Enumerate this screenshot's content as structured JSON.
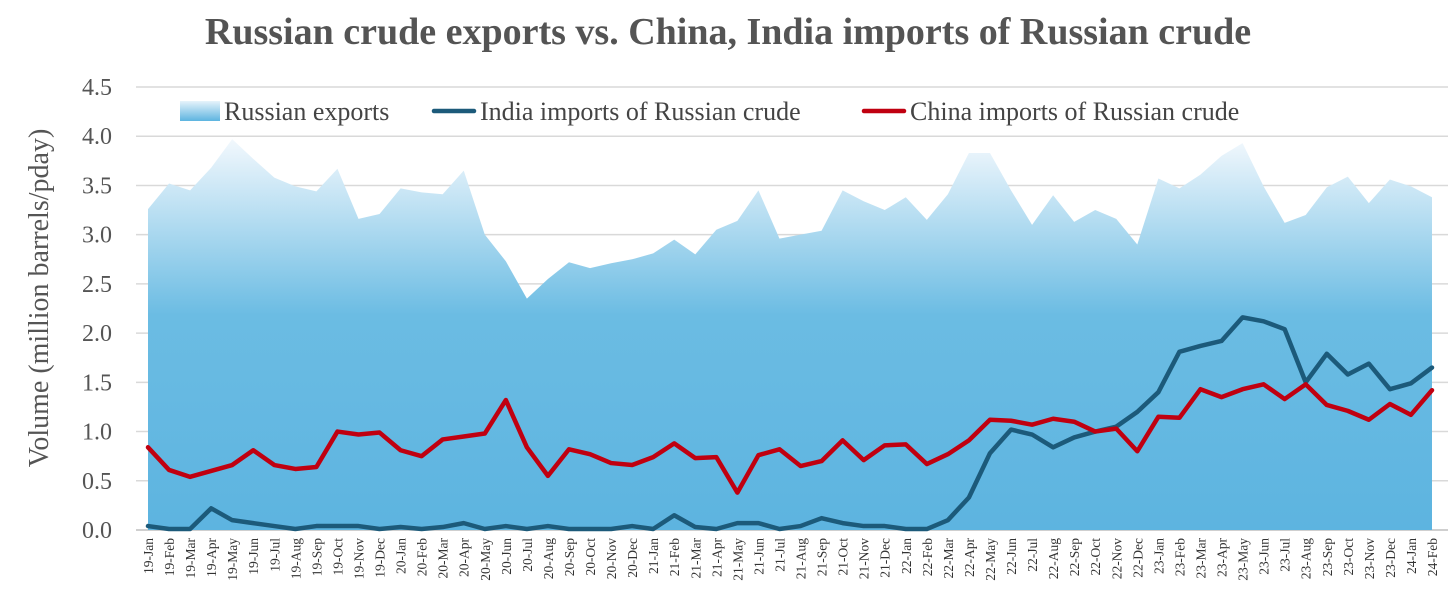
{
  "chart_data": {
    "type": "line",
    "title": "Russian crude exports vs. China, India imports of Russian crude",
    "ylabel": "Volume (million barrels/pday)",
    "xlabel": "",
    "ylim": [
      0,
      4.5
    ],
    "yticks": [
      "0.0",
      "0.5",
      "1.0",
      "1.5",
      "2.0",
      "2.5",
      "3.0",
      "3.5",
      "4.0",
      "4.5"
    ],
    "grid": true,
    "legend_position": "top",
    "categories": [
      "19-Jan",
      "19-Feb",
      "19-Mar",
      "19-Apr",
      "19-May",
      "19-Jun",
      "19-Jul",
      "19-Aug",
      "19-Sep",
      "19-Oct",
      "19-Nov",
      "19-Dec",
      "20-Jan",
      "20-Feb",
      "20-Mar",
      "20-Apr",
      "20-May",
      "20-Jun",
      "20-Jul",
      "20-Aug",
      "20-Sep",
      "20-Oct",
      "20-Nov",
      "20-Dec",
      "21-Jan",
      "21-Feb",
      "21-Mar",
      "21-Apr",
      "21-May",
      "21-Jun",
      "21-Jul",
      "21-Aug",
      "21-Sep",
      "21-Oct",
      "21-Nov",
      "21-Dec",
      "22-Jan",
      "22-Feb",
      "22-Mar",
      "22-Apr",
      "22-May",
      "22-Jun",
      "22-Jul",
      "22-Aug",
      "22-Sep",
      "22-Oct",
      "22-Nov",
      "22-Dec",
      "23-Jan",
      "23-Feb",
      "23-Mar",
      "23-Apr",
      "23-May",
      "23-Jun",
      "23-Jul",
      "23-Aug",
      "23-Sep",
      "23-Oct",
      "23-Nov",
      "23-Dec",
      "24-Jan",
      "24-Feb"
    ],
    "series": [
      {
        "name": "Russian exports",
        "kind": "area",
        "color": "#6bbce3",
        "values": [
          3.26,
          3.52,
          3.45,
          3.68,
          3.97,
          3.77,
          3.58,
          3.49,
          3.44,
          3.67,
          3.16,
          3.21,
          3.47,
          3.43,
          3.41,
          3.65,
          3.0,
          2.73,
          2.35,
          2.55,
          2.72,
          2.66,
          2.71,
          2.75,
          2.81,
          2.95,
          2.8,
          3.05,
          3.14,
          3.45,
          2.96,
          3.0,
          3.04,
          3.45,
          3.34,
          3.25,
          3.38,
          3.15,
          3.41,
          3.83,
          3.83,
          3.45,
          3.1,
          3.4,
          3.13,
          3.25,
          3.16,
          2.9,
          3.57,
          3.47,
          3.61,
          3.8,
          3.93,
          3.49,
          3.12,
          3.2,
          3.48,
          3.59,
          3.32,
          3.56,
          3.49,
          3.38
        ]
      },
      {
        "name": "India imports of Russian crude",
        "kind": "line",
        "color": "#1c5a7a",
        "values": [
          0.04,
          0.01,
          0.01,
          0.22,
          0.1,
          0.07,
          0.04,
          0.01,
          0.04,
          0.04,
          0.04,
          0.01,
          0.03,
          0.01,
          0.03,
          0.07,
          0.01,
          0.04,
          0.01,
          0.04,
          0.01,
          0.01,
          0.01,
          0.04,
          0.01,
          0.15,
          0.03,
          0.01,
          0.07,
          0.07,
          0.01,
          0.04,
          0.12,
          0.07,
          0.04,
          0.04,
          0.01,
          0.01,
          0.1,
          0.33,
          0.78,
          1.02,
          0.97,
          0.84,
          0.94,
          1.0,
          1.05,
          1.2,
          1.4,
          1.81,
          1.87,
          1.92,
          2.16,
          2.12,
          2.04,
          1.5,
          1.79,
          1.58,
          1.69,
          1.43,
          1.49,
          1.65
        ]
      },
      {
        "name": "China imports of Russian crude",
        "kind": "line",
        "color": "#c00010",
        "values": [
          0.84,
          0.61,
          0.54,
          0.6,
          0.66,
          0.81,
          0.66,
          0.62,
          0.64,
          1.0,
          0.97,
          0.99,
          0.81,
          0.75,
          0.92,
          0.95,
          0.98,
          1.32,
          0.84,
          0.55,
          0.82,
          0.77,
          0.68,
          0.66,
          0.74,
          0.88,
          0.73,
          0.74,
          0.38,
          0.76,
          0.82,
          0.65,
          0.7,
          0.91,
          0.71,
          0.86,
          0.87,
          0.67,
          0.77,
          0.91,
          1.12,
          1.11,
          1.07,
          1.13,
          1.1,
          1.0,
          1.03,
          0.8,
          1.15,
          1.14,
          1.43,
          1.35,
          1.43,
          1.48,
          1.33,
          1.48,
          1.27,
          1.21,
          1.12,
          1.28,
          1.17,
          1.42
        ]
      }
    ]
  }
}
